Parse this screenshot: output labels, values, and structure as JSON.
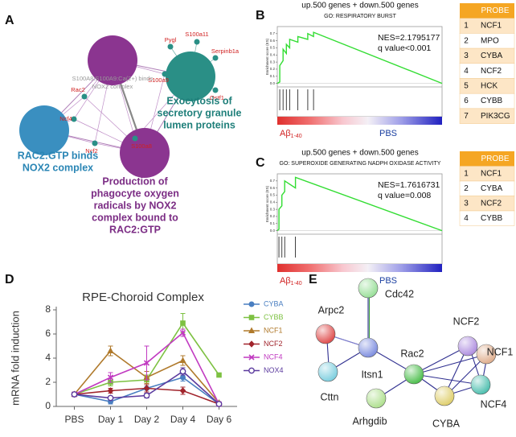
{
  "panel_labels": [
    "A",
    "B",
    "C",
    "D",
    "E"
  ],
  "network_a": {
    "hubs": [
      {
        "lines": [
          "Exocytosis of",
          "secretory granule",
          "lumen proteins"
        ]
      },
      {
        "lines": [
          "RAC2:GTP binds",
          "NOX2 complex"
        ]
      },
      {
        "lines": [
          "Production of",
          "phagocyte oxygen",
          "radicals by NOX2",
          "complex bound to",
          "RAC2:GTP"
        ]
      }
    ],
    "note": [
      "S100A8:S100A9:Ca(2+) binds",
      "NOX2 complex"
    ],
    "genes": [
      "Pygl",
      "S100a11",
      "Serpinb1a",
      "S100a9",
      "Ostf1",
      "S100a8",
      "Rac2",
      "Ncf4",
      "Ncf2"
    ]
  },
  "chart_data": [
    {
      "type": "gsea",
      "title": "up.500 genes + down.500 genes",
      "subtitle": "GO: RESPIRATORY BURST",
      "y_label": "Enrichment score (ES)",
      "annotations": [
        "NES=2.1795177",
        "q value<0.001"
      ],
      "x": [
        0,
        15,
        15,
        35,
        35,
        55,
        55,
        75,
        75,
        125,
        125,
        185,
        185,
        220,
        220,
        1000
      ],
      "values": [
        0,
        0.02,
        0.25,
        0.32,
        0.48,
        0.42,
        0.55,
        0.5,
        0.62,
        0.58,
        0.66,
        0.62,
        0.7,
        0.66,
        0.72,
        0
      ],
      "hits": [
        15,
        35,
        55,
        75,
        125,
        185,
        220
      ],
      "xlim": [
        0,
        1000
      ],
      "ylim": [
        -0.05,
        0.8
      ],
      "yticks": [
        {
          "value": 0,
          "label": "0.0"
        },
        0.1,
        0.2,
        0.3,
        0.4,
        0.5,
        0.6,
        0.7
      ],
      "color": "#33dd33",
      "left_group": "Aβ",
      "left_group_sub": "1-40",
      "right_group": "PBS"
    },
    {
      "type": "gsea",
      "title": "up.500 genes + down.500 genes",
      "subtitle": "GO: SUPEROXIDE GENERATING NADPH OXIDASE ACTIVITY",
      "y_label": "Enrichment score (ES)",
      "annotations": [
        "NES=1.7616731",
        "q value=0.008"
      ],
      "x": [
        0,
        10,
        10,
        28,
        28,
        45,
        45,
        110,
        110,
        1000
      ],
      "values": [
        0,
        0.02,
        0.3,
        0.35,
        0.5,
        0.55,
        0.7,
        0.6,
        0.75,
        0
      ],
      "hits": [
        10,
        28,
        45,
        110
      ],
      "xlim": [
        0,
        1000
      ],
      "ylim": [
        -0.05,
        0.8
      ],
      "yticks": [
        {
          "value": 0,
          "label": "0.0"
        },
        0.1,
        0.2,
        0.3,
        0.4,
        0.5,
        0.6,
        0.7
      ],
      "color": "#33dd33",
      "left_group": "Aβ",
      "left_group_sub": "1-40",
      "right_group": "PBS"
    },
    {
      "type": "line",
      "title": "RPE-Choroid Complex",
      "y_label": "mRNA fold induction",
      "categories": [
        "PBS",
        "Day 1",
        "Day 2",
        "Day 4",
        "Day 6"
      ],
      "ylim": [
        0,
        8
      ],
      "yticks": [
        0,
        2,
        4,
        6,
        8
      ],
      "series": [
        {
          "name": "CYBA",
          "color": "#4a7fc1",
          "marker": "circle",
          "values": [
            1,
            0.4,
            1.5,
            2.4,
            0.2
          ],
          "errors": [
            0.1,
            0.2,
            0.3,
            0.3,
            0.05
          ]
        },
        {
          "name": "CYBB",
          "color": "#7dc142",
          "marker": "square",
          "values": [
            1,
            2.0,
            2.2,
            6.9,
            2.6
          ],
          "errors": [
            0.1,
            0.3,
            0.4,
            0.8,
            0.1
          ]
        },
        {
          "name": "NCF1",
          "color": "#b07a2c",
          "marker": "triangle",
          "values": [
            1,
            4.6,
            2.4,
            3.8,
            0.3
          ],
          "errors": [
            0.1,
            0.4,
            0.5,
            0.4,
            0.05
          ]
        },
        {
          "name": "NCF2",
          "color": "#a1242c",
          "marker": "diamond",
          "values": [
            1,
            1.3,
            1.5,
            1.3,
            0.2
          ],
          "errors": [
            0.1,
            0.2,
            0.3,
            0.3,
            0.05
          ]
        },
        {
          "name": "NCF4",
          "color": "#c13ac1",
          "marker": "cross",
          "values": [
            1,
            2.4,
            3.6,
            6.1,
            0.2
          ],
          "errors": [
            0.1,
            0.4,
            1.4,
            0.3,
            0.05
          ]
        },
        {
          "name": "NOX4",
          "color": "#5b3a9e",
          "marker": "open-circle",
          "values": [
            1,
            0.7,
            0.9,
            2.9,
            0.2
          ],
          "errors": [
            0.1,
            0.1,
            0.2,
            0.3,
            0.05
          ]
        }
      ]
    }
  ],
  "tables": [
    {
      "header": "PROBE",
      "rows": [
        [
          1,
          "NCF1"
        ],
        [
          2,
          "MPO"
        ],
        [
          3,
          "CYBA"
        ],
        [
          4,
          "NCF2"
        ],
        [
          5,
          "HCK"
        ],
        [
          6,
          "CYBB"
        ],
        [
          7,
          "PIK3CG"
        ]
      ]
    },
    {
      "header": "PROBE",
      "rows": [
        [
          1,
          "NCF1"
        ],
        [
          2,
          "CYBA"
        ],
        [
          3,
          "NCF2"
        ],
        [
          4,
          "CYBB"
        ]
      ]
    }
  ],
  "network_e": {
    "nodes": [
      "Cdc42",
      "Arpc2",
      "Itsn1",
      "Cttn",
      "Rac2",
      "Arhgdib",
      "NCF2",
      "NCF1",
      "NCF4",
      "CYBA"
    ]
  }
}
